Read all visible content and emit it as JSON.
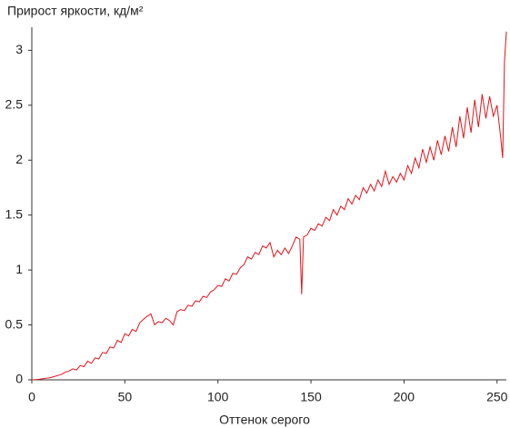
{
  "chart_data": {
    "type": "line",
    "title": "Прирост яркости, кд/м²",
    "x_label": "Оттенок серого",
    "xlim": [
      0,
      255
    ],
    "ylim": [
      0,
      3.21
    ],
    "xticks": [
      0,
      50,
      100,
      150,
      200,
      250
    ],
    "yticks": [
      0,
      0.5,
      1,
      1.5,
      2,
      2.5,
      3
    ],
    "series": [
      {
        "color": "#e3141b",
        "x": [
          0,
          2,
          4,
          6,
          8,
          10,
          12,
          14,
          16,
          18,
          20,
          22,
          24,
          26,
          28,
          30,
          32,
          34,
          36,
          38,
          40,
          42,
          44,
          46,
          48,
          50,
          52,
          54,
          56,
          58,
          60,
          62,
          64,
          66,
          68,
          70,
          72,
          74,
          76,
          78,
          80,
          82,
          84,
          86,
          88,
          90,
          92,
          94,
          96,
          98,
          100,
          102,
          104,
          106,
          108,
          110,
          112,
          114,
          116,
          118,
          120,
          122,
          124,
          126,
          128,
          130,
          132,
          134,
          136,
          138,
          140,
          142,
          144,
          145,
          146,
          148,
          150,
          152,
          154,
          156,
          158,
          160,
          162,
          164,
          166,
          168,
          170,
          172,
          174,
          176,
          178,
          180,
          182,
          184,
          186,
          188,
          190,
          192,
          194,
          196,
          198,
          200,
          202,
          204,
          206,
          208,
          210,
          212,
          214,
          216,
          218,
          220,
          222,
          224,
          226,
          228,
          230,
          232,
          234,
          236,
          238,
          240,
          242,
          244,
          246,
          248,
          250,
          252,
          253,
          254,
          255
        ],
        "values": [
          0,
          0.002,
          0.005,
          0.01,
          0.015,
          0.02,
          0.03,
          0.04,
          0.05,
          0.07,
          0.08,
          0.1,
          0.09,
          0.13,
          0.12,
          0.17,
          0.15,
          0.2,
          0.19,
          0.25,
          0.24,
          0.3,
          0.29,
          0.36,
          0.34,
          0.42,
          0.4,
          0.46,
          0.44,
          0.52,
          0.55,
          0.58,
          0.6,
          0.5,
          0.53,
          0.52,
          0.56,
          0.54,
          0.5,
          0.62,
          0.64,
          0.63,
          0.68,
          0.67,
          0.72,
          0.71,
          0.76,
          0.75,
          0.8,
          0.82,
          0.86,
          0.85,
          0.92,
          0.9,
          0.97,
          0.96,
          1.02,
          1.05,
          1.12,
          1.1,
          1.16,
          1.14,
          1.22,
          1.2,
          1.25,
          1.12,
          1.18,
          1.14,
          1.2,
          1.15,
          1.22,
          1.3,
          1.28,
          0.78,
          1.3,
          1.32,
          1.38,
          1.36,
          1.42,
          1.4,
          1.48,
          1.45,
          1.55,
          1.5,
          1.58,
          1.55,
          1.65,
          1.6,
          1.68,
          1.64,
          1.75,
          1.7,
          1.78,
          1.72,
          1.82,
          1.76,
          1.9,
          1.78,
          1.85,
          1.8,
          1.88,
          1.82,
          1.95,
          1.88,
          2.02,
          1.93,
          2.1,
          1.98,
          2.12,
          2.0,
          2.18,
          2.05,
          2.22,
          2.08,
          2.3,
          2.12,
          2.4,
          2.2,
          2.48,
          2.25,
          2.55,
          2.3,
          2.6,
          2.38,
          2.58,
          2.4,
          2.5,
          2.2,
          2.02,
          2.9,
          3.17
        ]
      }
    ]
  }
}
